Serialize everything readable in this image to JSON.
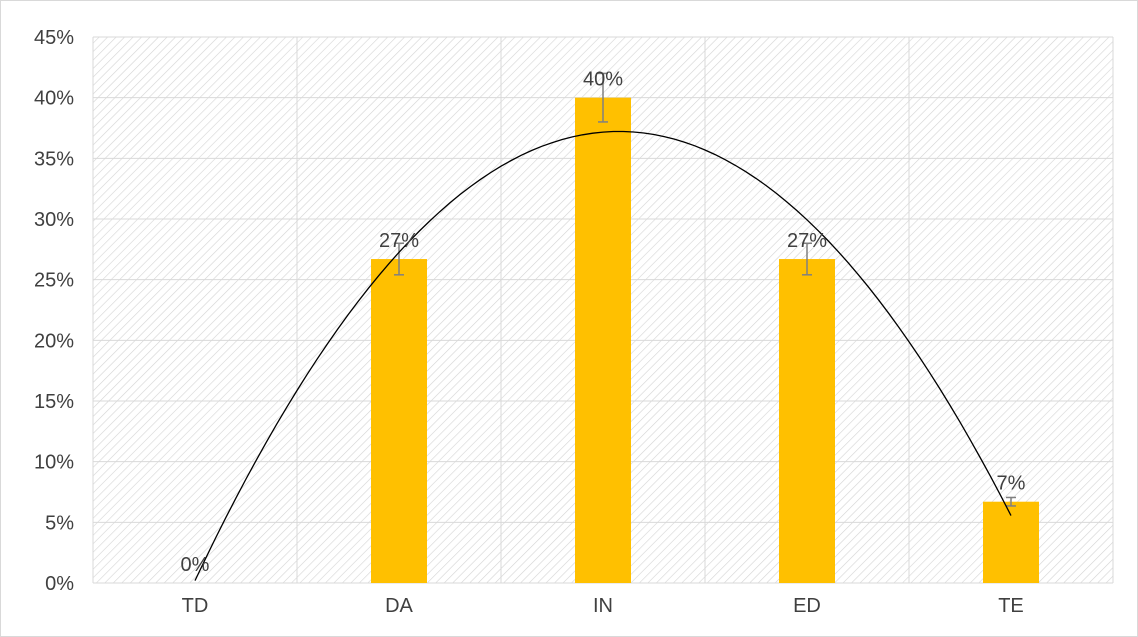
{
  "chart_data": {
    "type": "bar",
    "categories": [
      "TD",
      "DA",
      "IN",
      "ED",
      "TE"
    ],
    "values": [
      0,
      0.267,
      0.4,
      0.267,
      0.067
    ],
    "data_labels": [
      "0%",
      "27%",
      "40%",
      "27%",
      "7%"
    ],
    "error_bars": [
      0,
      0.013,
      0.02,
      0.013,
      0.0035
    ],
    "trendline": {
      "type": "polynomial",
      "order": 2,
      "color": "#000000"
    },
    "ylim": [
      0,
      0.45
    ],
    "yticks": [
      0,
      0.05,
      0.1,
      0.15,
      0.2,
      0.25,
      0.3,
      0.35,
      0.4,
      0.45
    ],
    "ytick_labels": [
      "0%",
      "5%",
      "10%",
      "15%",
      "20%",
      "25%",
      "30%",
      "35%",
      "40%",
      "45%"
    ],
    "grid": true,
    "plot_background": "hatched",
    "colors": {
      "bar": "#FFC000",
      "grid": "#d9d9d9",
      "hatch": "#d9d9d9",
      "error_bar": "#808080",
      "text": "#404040"
    }
  }
}
